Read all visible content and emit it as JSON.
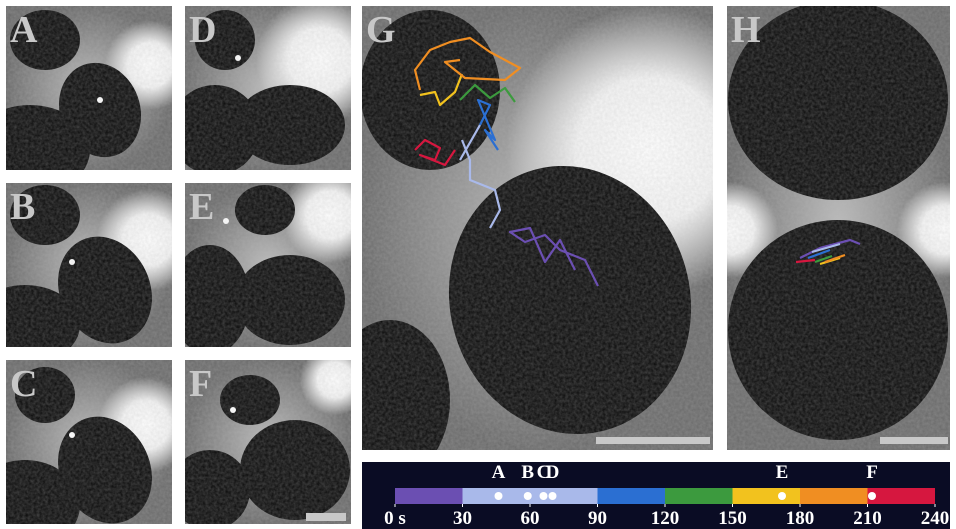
{
  "panels": [
    {
      "label": "A"
    },
    {
      "label": "B"
    },
    {
      "label": "C"
    },
    {
      "label": "D"
    },
    {
      "label": "E"
    },
    {
      "label": "F"
    },
    {
      "label": "G"
    },
    {
      "label": "H"
    }
  ],
  "time_scale": {
    "xlim": [
      0,
      240
    ],
    "segments": [
      {
        "start": 0,
        "end": 30,
        "color": "#6b4fb2"
      },
      {
        "start": 30,
        "end": 90,
        "color": "#a9b9ea"
      },
      {
        "start": 90,
        "end": 120,
        "color": "#2b6fd2"
      },
      {
        "start": 120,
        "end": 150,
        "color": "#3c9a3e"
      },
      {
        "start": 150,
        "end": 180,
        "color": "#f2c21e"
      },
      {
        "start": 180,
        "end": 210,
        "color": "#f08e22"
      },
      {
        "start": 210,
        "end": 240,
        "color": "#d6173f"
      }
    ],
    "ticks": [
      {
        "value": 0,
        "label": "0 s"
      },
      30,
      60,
      90,
      120,
      150,
      180,
      210,
      240
    ],
    "markers": [
      {
        "label": "A",
        "time": 46
      },
      {
        "label": "B",
        "time": 59
      },
      {
        "label": "C",
        "time": 66
      },
      {
        "label": "D",
        "time": 70
      },
      {
        "label": "E",
        "time": 172
      },
      {
        "label": "F",
        "time": 212
      }
    ]
  }
}
